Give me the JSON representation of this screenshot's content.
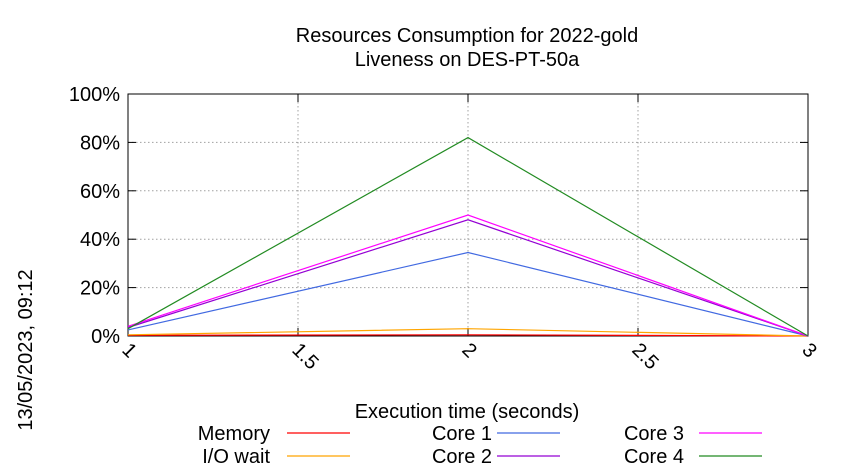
{
  "chart_data": {
    "type": "line",
    "title_line1": "Resources Consumption for 2022-gold",
    "title_line2": "Liveness on DES-PT-50a",
    "xlabel": "Execution time (seconds)",
    "ylabel": "",
    "side_label": "13/05/2023, 09:12",
    "x": [
      1,
      2,
      3
    ],
    "xlim": [
      1,
      3
    ],
    "ylim": [
      0,
      100
    ],
    "x_ticks": [
      1,
      1.5,
      2,
      2.5,
      3
    ],
    "x_tick_labels": [
      "1",
      "1.5",
      "2",
      "2.5",
      "3"
    ],
    "y_ticks": [
      0,
      20,
      40,
      60,
      80,
      100
    ],
    "y_tick_labels": [
      "0%",
      "20%",
      "40%",
      "60%",
      "80%",
      "100%"
    ],
    "grid": true,
    "legend_position": "bottom",
    "series": [
      {
        "name": "Memory",
        "color": "#ff0000",
        "values": [
          0.3,
          0.5,
          0.0
        ]
      },
      {
        "name": "I/O wait",
        "color": "#ffa500",
        "values": [
          0.5,
          3.0,
          0.0
        ]
      },
      {
        "name": "Core 1",
        "color": "#4169e1",
        "values": [
          2.5,
          34.5,
          0.0
        ]
      },
      {
        "name": "Core 2",
        "color": "#9400d3",
        "values": [
          3.5,
          48.0,
          0.0
        ]
      },
      {
        "name": "Core 3",
        "color": "#ff00ff",
        "values": [
          4.0,
          50.0,
          0.0
        ]
      },
      {
        "name": "Core 4",
        "color": "#228b22",
        "values": [
          3.0,
          82.0,
          0.0
        ]
      }
    ]
  }
}
